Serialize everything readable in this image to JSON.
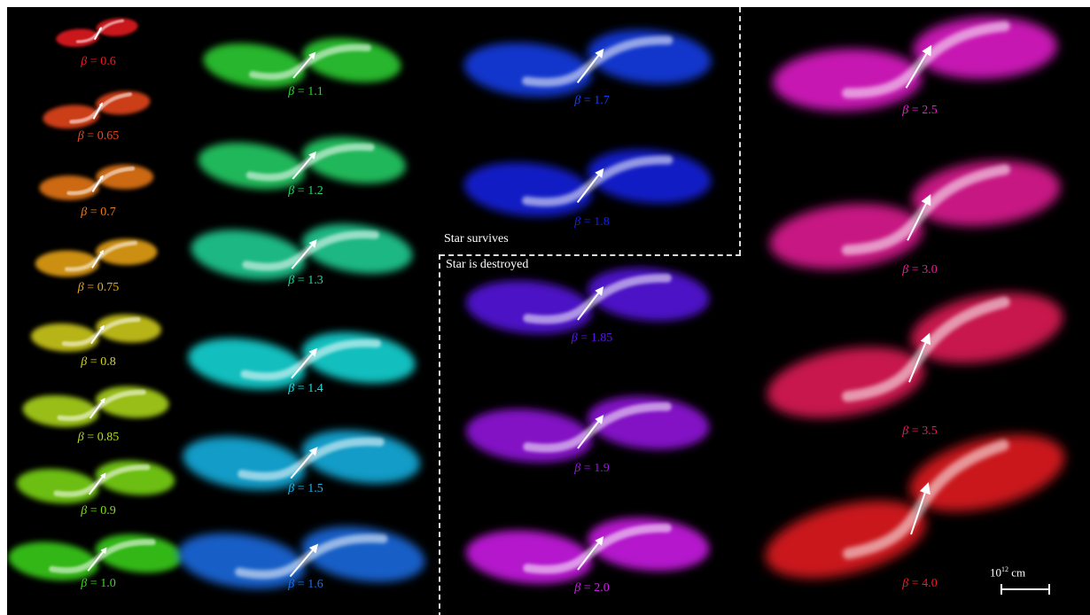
{
  "figure": {
    "survive_label": "Star survives",
    "destroyed_label": "Star is destroyed",
    "scale_label_base": "10",
    "scale_label_exp": "12",
    "scale_label_unit": " cm",
    "symbol": "β",
    "equals": " = "
  },
  "panels": [
    {
      "beta": "0.6",
      "color": "#ee1c24"
    },
    {
      "beta": "0.65",
      "color": "#f04a1c"
    },
    {
      "beta": "0.7",
      "color": "#f07c18"
    },
    {
      "beta": "0.75",
      "color": "#f0a818"
    },
    {
      "beta": "0.8",
      "color": "#d8d41a"
    },
    {
      "beta": "0.85",
      "color": "#b4e01a"
    },
    {
      "beta": "0.9",
      "color": "#80e014"
    },
    {
      "beta": "1.0",
      "color": "#3cd81a"
    },
    {
      "beta": "1.1",
      "color": "#2ed636"
    },
    {
      "beta": "1.2",
      "color": "#28d86a"
    },
    {
      "beta": "1.3",
      "color": "#20d89a"
    },
    {
      "beta": "1.4",
      "color": "#18e0e0"
    },
    {
      "beta": "1.5",
      "color": "#18b8ea"
    },
    {
      "beta": "1.6",
      "color": "#1a70ea"
    },
    {
      "beta": "1.7",
      "color": "#1440f0"
    },
    {
      "beta": "1.8",
      "color": "#1420e8"
    },
    {
      "beta": "1.85",
      "color": "#5a14e8"
    },
    {
      "beta": "1.9",
      "color": "#9a14e8"
    },
    {
      "beta": "2.0",
      "color": "#d41cf0"
    },
    {
      "beta": "2.5",
      "color": "#ea1cd2"
    },
    {
      "beta": "3.0",
      "color": "#ea1c9a"
    },
    {
      "beta": "3.5",
      "color": "#ea1c5a"
    },
    {
      "beta": "4.0",
      "color": "#ee1c24"
    }
  ]
}
